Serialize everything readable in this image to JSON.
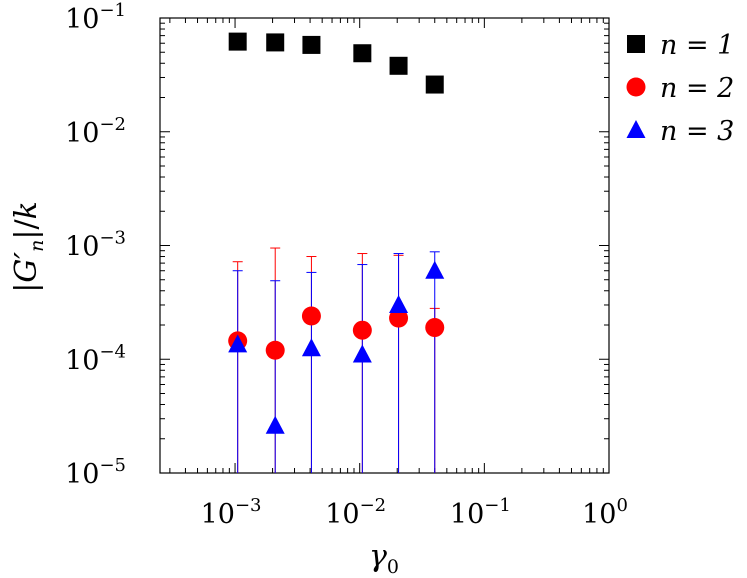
{
  "chart_data": {
    "type": "scatter",
    "xlabel": "γ0",
    "ylabel": "|G′n|/k",
    "xscale": "log",
    "yscale": "log",
    "xlim": [
      0.00025,
      1
    ],
    "ylim": [
      1e-05,
      0.1
    ],
    "x_ticks": [
      {
        "value": 0.001,
        "base": "10",
        "exp": "−3"
      },
      {
        "value": 0.01,
        "base": "10",
        "exp": "−2"
      },
      {
        "value": 0.1,
        "base": "10",
        "exp": "−1"
      },
      {
        "value": 1,
        "base": "10",
        "exp": "0"
      }
    ],
    "y_ticks": [
      {
        "value": 1e-05,
        "base": "10",
        "exp": "−5"
      },
      {
        "value": 0.0001,
        "base": "10",
        "exp": "−4"
      },
      {
        "value": 0.001,
        "base": "10",
        "exp": "−3"
      },
      {
        "value": 0.01,
        "base": "10",
        "exp": "−2"
      },
      {
        "value": 0.1,
        "base": "10",
        "exp": "−1"
      }
    ],
    "grid": false,
    "legend_position": "outside-right",
    "series": [
      {
        "name": "n = 1",
        "marker": "square",
        "color": "#000000",
        "x": [
          0.00105,
          0.0021,
          0.0041,
          0.0105,
          0.0205,
          0.04
        ],
        "y": [
          0.062,
          0.061,
          0.058,
          0.049,
          0.038,
          0.026
        ]
      },
      {
        "name": "n = 2",
        "marker": "circle",
        "color": "#ff0000",
        "x": [
          0.00105,
          0.0021,
          0.0041,
          0.0105,
          0.0205,
          0.04
        ],
        "y": [
          0.000145,
          0.00012,
          0.00024,
          0.00018,
          0.00023,
          0.00019
        ],
        "err_high": [
          0.00072,
          0.00095,
          0.0008,
          0.00085,
          0.00082,
          0.00028
        ],
        "err_low": [
          1e-05,
          1e-05,
          1e-05,
          1e-05,
          1e-05,
          1e-05
        ]
      },
      {
        "name": "n = 3",
        "marker": "triangle",
        "color": "#0000ff",
        "x": [
          0.00105,
          0.0021,
          0.0041,
          0.0105,
          0.0205,
          0.04
        ],
        "y": [
          0.000135,
          2.6e-05,
          0.000125,
          0.00011,
          0.0003,
          0.0006
        ],
        "err_high": [
          0.0006,
          0.00049,
          0.00058,
          0.00068,
          0.00085,
          0.00088
        ],
        "err_low": [
          1e-05,
          1e-05,
          1e-05,
          1e-05,
          1e-05,
          1e-05
        ]
      }
    ]
  }
}
